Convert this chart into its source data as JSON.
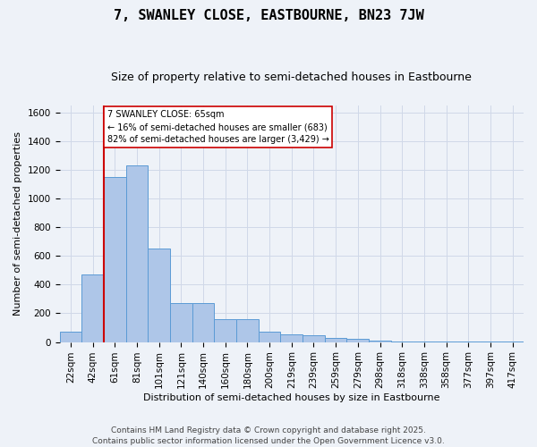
{
  "title": "7, SWANLEY CLOSE, EASTBOURNE, BN23 7JW",
  "subtitle": "Size of property relative to semi-detached houses in Eastbourne",
  "xlabel": "Distribution of semi-detached houses by size in Eastbourne",
  "ylabel": "Number of semi-detached properties",
  "footer": "Contains HM Land Registry data © Crown copyright and database right 2025.\nContains public sector information licensed under the Open Government Licence v3.0.",
  "categories": [
    "22sqm",
    "42sqm",
    "61sqm",
    "81sqm",
    "101sqm",
    "121sqm",
    "140sqm",
    "160sqm",
    "180sqm",
    "200sqm",
    "219sqm",
    "239sqm",
    "259sqm",
    "279sqm",
    "298sqm",
    "318sqm",
    "338sqm",
    "358sqm",
    "377sqm",
    "397sqm",
    "417sqm"
  ],
  "values": [
    75,
    470,
    1150,
    1230,
    650,
    270,
    270,
    160,
    160,
    75,
    55,
    50,
    30,
    20,
    10,
    5,
    5,
    3,
    2,
    1,
    1
  ],
  "bar_color": "#aec6e8",
  "bar_edge_color": "#5b9bd5",
  "grid_color": "#d0d8e8",
  "vline_x_idx": 2,
  "vline_color": "#cc0000",
  "annotation_text": "7 SWANLEY CLOSE: 65sqm\n← 16% of semi-detached houses are smaller (683)\n82% of semi-detached houses are larger (3,429) →",
  "ylim": [
    0,
    1650
  ],
  "yticks": [
    0,
    200,
    400,
    600,
    800,
    1000,
    1200,
    1400,
    1600
  ],
  "title_fontsize": 11,
  "subtitle_fontsize": 9,
  "label_fontsize": 8,
  "tick_fontsize": 7.5,
  "annot_fontsize": 7,
  "footer_fontsize": 6.5,
  "background_color": "#eef2f8"
}
